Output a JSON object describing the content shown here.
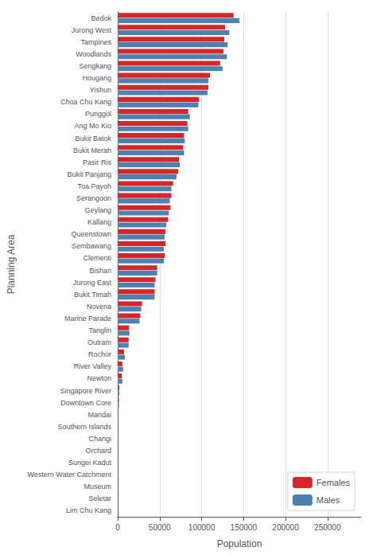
{
  "chart_data": {
    "type": "bar",
    "orientation": "horizontal",
    "xlabel": "Population",
    "ylabel": "Planning Area",
    "categories": [
      "Bedok",
      "Jurong West",
      "Tampines",
      "Woodlands",
      "Sengkang",
      "Hougang",
      "Yishun",
      "Choa Chu Kang",
      "Punggol",
      "Ang Mo Kio",
      "Bukit Batok",
      "Bukit Merah",
      "Pasir Ris",
      "Bukit Panjang",
      "Toa Payoh",
      "Serangoon",
      "Geylang",
      "Kallang",
      "Queenstown",
      "Sembawang",
      "Clementi",
      "Bishan",
      "Jurong East",
      "Bukit Timah",
      "Novena",
      "Marine Parade",
      "Tanglin",
      "Outram",
      "Rochor",
      "River Valley",
      "Newton",
      "Singapore River",
      "Downtown Core",
      "Mandai",
      "Southern Islands",
      "Changi",
      "Orchard",
      "Sungei Kadut",
      "Western Water Catchment",
      "Museum",
      "Seletar",
      "Lim Chu Kang"
    ],
    "series": [
      {
        "name": "Females",
        "color": "#d62728",
        "values": [
          138000,
          128000,
          127000,
          126000,
          122000,
          110000,
          108000,
          97000,
          84000,
          83000,
          79000,
          78000,
          73000,
          72000,
          66000,
          64000,
          63000,
          60000,
          57000,
          57000,
          56000,
          47000,
          45000,
          44000,
          29000,
          27000,
          13500,
          13000,
          7500,
          5500,
          5000,
          1800,
          1400,
          400,
          200,
          150,
          100,
          80,
          80,
          80,
          80,
          80
        ]
      },
      {
        "name": "Males",
        "color": "#4c82b0",
        "values": [
          145000,
          133000,
          131000,
          130000,
          125000,
          108000,
          107000,
          96000,
          86000,
          84000,
          80000,
          79000,
          74000,
          70000,
          64000,
          62000,
          61000,
          58000,
          56000,
          55000,
          55000,
          47000,
          44000,
          44000,
          28000,
          26000,
          14000,
          13000,
          8500,
          6500,
          5500,
          2000,
          1500,
          500,
          300,
          200,
          150,
          100,
          100,
          100,
          100,
          100
        ]
      }
    ],
    "xlim": [
      0,
      290000
    ],
    "xticks": [
      0,
      50000,
      100000,
      150000,
      200000,
      250000
    ],
    "grid": true,
    "legend": "lower right"
  }
}
